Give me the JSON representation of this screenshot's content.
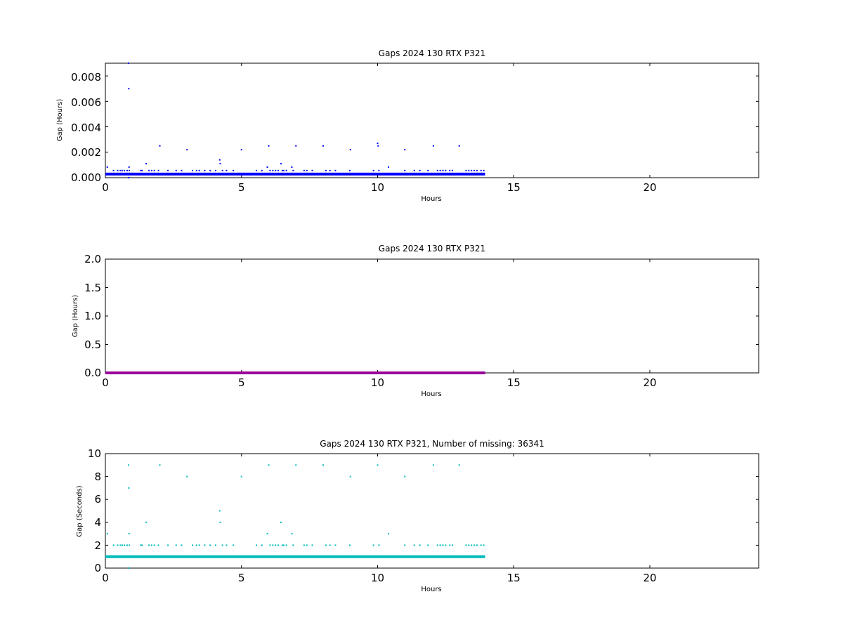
{
  "chart_data": [
    {
      "type": "scatter",
      "title": "Gaps 2024 130 RTX  P321",
      "xlabel": "Hours",
      "ylabel": "Gap (Hours)",
      "xlim": [
        0,
        24
      ],
      "ylim": [
        0,
        0.009
      ],
      "xticks": [
        "0",
        "5",
        "10",
        "15",
        "20"
      ],
      "yticks": [
        "0.000",
        "0.002",
        "0.004",
        "0.006",
        "0.008"
      ],
      "baseline": {
        "y": 0.00028,
        "x_start": 0,
        "x_end": 13.95
      },
      "series": [
        {
          "color": "#0000ff",
          "points": [
            [
              0.07,
              0.00083
            ],
            [
              0.3,
              0.00056
            ],
            [
              0.45,
              0.00056
            ],
            [
              0.55,
              0.00056
            ],
            [
              0.62,
              0.00056
            ],
            [
              0.7,
              0.00056
            ],
            [
              0.8,
              0.00056
            ],
            [
              0.85,
              0.009
            ],
            [
              0.86,
              0.007
            ],
            [
              0.87,
              0.00083
            ],
            [
              0.88,
              0.00056
            ],
            [
              0.86,
              0.0
            ],
            [
              1.3,
              0.00056
            ],
            [
              1.35,
              0.00056
            ],
            [
              1.5,
              0.0011
            ],
            [
              1.6,
              0.00056
            ],
            [
              1.7,
              0.00056
            ],
            [
              1.8,
              0.00056
            ],
            [
              1.95,
              0.00056
            ],
            [
              2.0,
              0.0025
            ],
            [
              2.3,
              0.00056
            ],
            [
              2.6,
              0.00056
            ],
            [
              2.8,
              0.00056
            ],
            [
              3.0,
              0.0022
            ],
            [
              3.2,
              0.00056
            ],
            [
              3.35,
              0.00056
            ],
            [
              3.45,
              0.00056
            ],
            [
              3.65,
              0.00056
            ],
            [
              3.85,
              0.00056
            ],
            [
              4.05,
              0.00056
            ],
            [
              4.2,
              0.0014
            ],
            [
              4.22,
              0.0011
            ],
            [
              4.3,
              0.00056
            ],
            [
              4.45,
              0.00056
            ],
            [
              4.7,
              0.00056
            ],
            [
              5.0,
              0.0022
            ],
            [
              5.55,
              0.00056
            ],
            [
              5.75,
              0.00056
            ],
            [
              5.95,
              0.00083
            ],
            [
              6.0,
              0.0025
            ],
            [
              6.05,
              0.00056
            ],
            [
              6.15,
              0.00056
            ],
            [
              6.25,
              0.00056
            ],
            [
              6.35,
              0.00056
            ],
            [
              6.45,
              0.0011
            ],
            [
              6.5,
              0.00056
            ],
            [
              6.55,
              0.00056
            ],
            [
              6.65,
              0.00056
            ],
            [
              6.85,
              0.00083
            ],
            [
              6.9,
              0.00056
            ],
            [
              7.0,
              0.0025
            ],
            [
              7.3,
              0.00056
            ],
            [
              7.4,
              0.00056
            ],
            [
              7.6,
              0.00056
            ],
            [
              8.0,
              0.0025
            ],
            [
              8.1,
              0.00056
            ],
            [
              8.25,
              0.00056
            ],
            [
              8.45,
              0.00056
            ],
            [
              9.0,
              0.0022
            ],
            [
              8.98,
              0.00056
            ],
            [
              9.85,
              0.00056
            ],
            [
              10.0,
              0.0027
            ],
            [
              10.02,
              0.0025
            ],
            [
              10.05,
              0.00056
            ],
            [
              10.4,
              0.00083
            ],
            [
              11.0,
              0.0022
            ],
            [
              11.0,
              0.00056
            ],
            [
              11.35,
              0.00056
            ],
            [
              11.55,
              0.00056
            ],
            [
              11.85,
              0.00056
            ],
            [
              12.05,
              0.0025
            ],
            [
              12.2,
              0.00056
            ],
            [
              12.3,
              0.00056
            ],
            [
              12.4,
              0.00056
            ],
            [
              12.5,
              0.00056
            ],
            [
              12.65,
              0.00056
            ],
            [
              12.75,
              0.00056
            ],
            [
              13.0,
              0.0025
            ],
            [
              13.25,
              0.00056
            ],
            [
              13.35,
              0.00056
            ],
            [
              13.45,
              0.00056
            ],
            [
              13.55,
              0.00056
            ],
            [
              13.65,
              0.00056
            ],
            [
              13.8,
              0.00056
            ],
            [
              13.9,
              0.00056
            ]
          ]
        }
      ]
    },
    {
      "type": "scatter",
      "title": "Gaps 2024 130 RTX  P321",
      "xlabel": "Hours",
      "ylabel": "Gap (Hours)",
      "xlim": [
        0,
        24
      ],
      "ylim": [
        0,
        2.0
      ],
      "xticks": [
        "0",
        "5",
        "10",
        "15",
        "20"
      ],
      "yticks": [
        "0.0",
        "0.5",
        "1.0",
        "1.5",
        "2.0"
      ],
      "baseline": {
        "y": 0.0,
        "x_start": 0,
        "x_end": 13.95
      },
      "series": [
        {
          "color": "#990099",
          "points": []
        }
      ]
    },
    {
      "type": "scatter",
      "title": "Gaps 2024 130 RTX  P321, Number of missing: 36341",
      "xlabel": "Hours",
      "ylabel": "Gap (Seconds)",
      "xlim": [
        0,
        24
      ],
      "ylim": [
        0,
        10
      ],
      "xticks": [
        "0",
        "5",
        "10",
        "15",
        "20"
      ],
      "yticks": [
        "0",
        "2",
        "4",
        "6",
        "8",
        "10"
      ],
      "baseline": {
        "y": 1,
        "x_start": 0,
        "x_end": 13.95
      },
      "series": [
        {
          "color": "#00bbbb",
          "points": [
            [
              0.07,
              3
            ],
            [
              0.3,
              2
            ],
            [
              0.45,
              2
            ],
            [
              0.55,
              2
            ],
            [
              0.62,
              2
            ],
            [
              0.7,
              2
            ],
            [
              0.8,
              2
            ],
            [
              0.85,
              9
            ],
            [
              0.86,
              7
            ],
            [
              0.87,
              3
            ],
            [
              0.88,
              2
            ],
            [
              0.86,
              0
            ],
            [
              1.3,
              2
            ],
            [
              1.35,
              2
            ],
            [
              1.5,
              4
            ],
            [
              1.6,
              2
            ],
            [
              1.7,
              2
            ],
            [
              1.8,
              2
            ],
            [
              1.95,
              2
            ],
            [
              2.0,
              9
            ],
            [
              2.3,
              2
            ],
            [
              2.6,
              2
            ],
            [
              2.8,
              2
            ],
            [
              3.0,
              8
            ],
            [
              3.2,
              2
            ],
            [
              3.35,
              2
            ],
            [
              3.45,
              2
            ],
            [
              3.65,
              2
            ],
            [
              3.85,
              2
            ],
            [
              4.05,
              2
            ],
            [
              4.2,
              5
            ],
            [
              4.22,
              4
            ],
            [
              4.3,
              2
            ],
            [
              4.45,
              2
            ],
            [
              4.7,
              2
            ],
            [
              5.0,
              8
            ],
            [
              5.55,
              2
            ],
            [
              5.75,
              2
            ],
            [
              5.95,
              3
            ],
            [
              6.0,
              9
            ],
            [
              6.05,
              2
            ],
            [
              6.15,
              2
            ],
            [
              6.25,
              2
            ],
            [
              6.35,
              2
            ],
            [
              6.45,
              4
            ],
            [
              6.5,
              2
            ],
            [
              6.55,
              2
            ],
            [
              6.65,
              2
            ],
            [
              6.85,
              3
            ],
            [
              6.9,
              2
            ],
            [
              7.0,
              9
            ],
            [
              7.3,
              2
            ],
            [
              7.4,
              2
            ],
            [
              7.6,
              2
            ],
            [
              8.0,
              9
            ],
            [
              8.1,
              2
            ],
            [
              8.25,
              2
            ],
            [
              8.45,
              2
            ],
            [
              9.0,
              8
            ],
            [
              8.98,
              2
            ],
            [
              9.85,
              2
            ],
            [
              10.0,
              9
            ],
            [
              10.05,
              2
            ],
            [
              10.4,
              3
            ],
            [
              11.0,
              8
            ],
            [
              11.0,
              2
            ],
            [
              11.35,
              2
            ],
            [
              11.55,
              2
            ],
            [
              11.85,
              2
            ],
            [
              12.05,
              9
            ],
            [
              12.2,
              2
            ],
            [
              12.3,
              2
            ],
            [
              12.4,
              2
            ],
            [
              12.5,
              2
            ],
            [
              12.65,
              2
            ],
            [
              12.75,
              2
            ],
            [
              13.0,
              9
            ],
            [
              13.25,
              2
            ],
            [
              13.35,
              2
            ],
            [
              13.45,
              2
            ],
            [
              13.55,
              2
            ],
            [
              13.65,
              2
            ],
            [
              13.8,
              2
            ],
            [
              13.9,
              2
            ]
          ]
        }
      ]
    }
  ]
}
